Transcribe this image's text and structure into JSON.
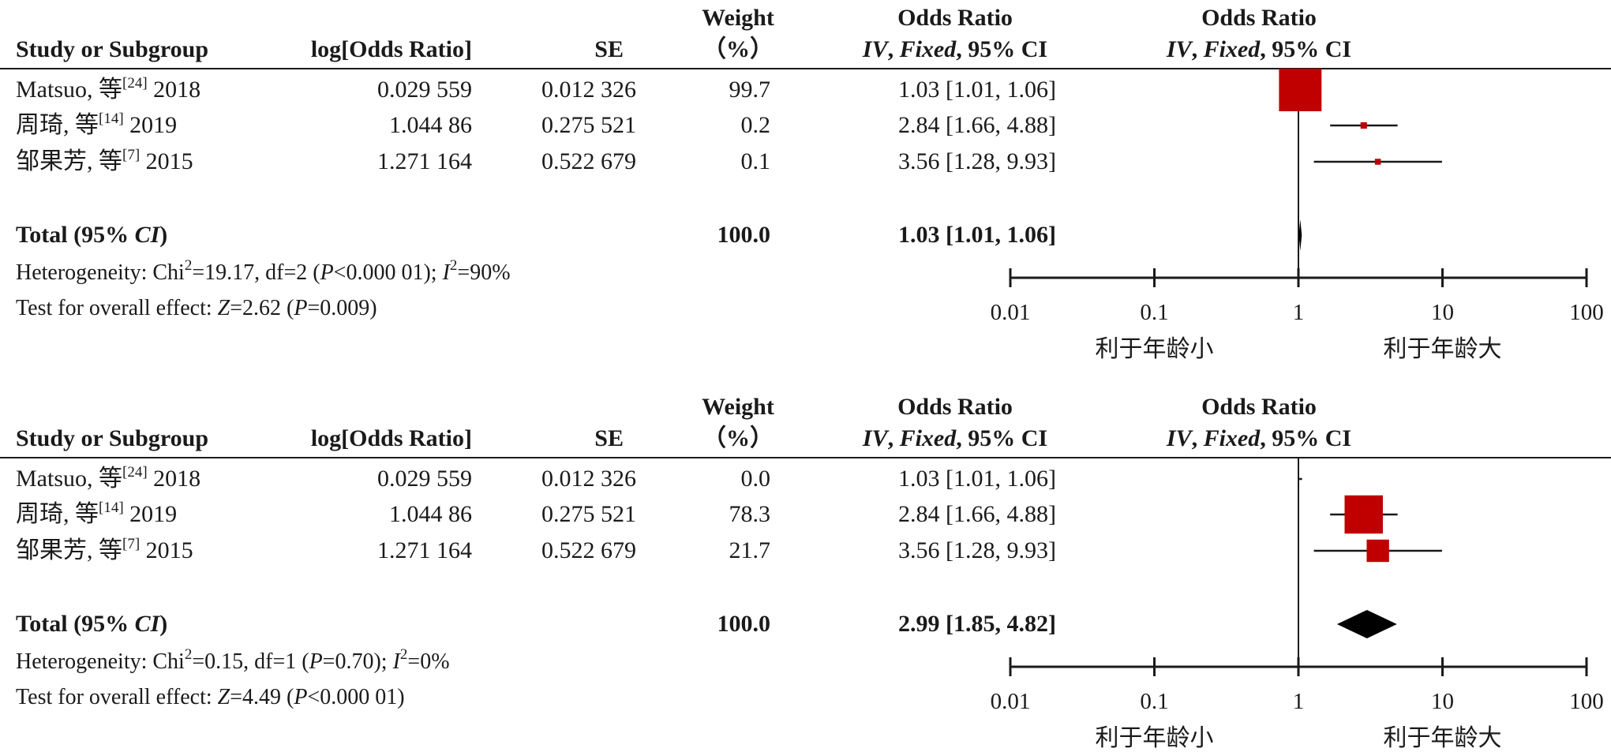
{
  "headers": {
    "study": "Study or Subgroup",
    "log_or": "log[Odds Ratio]",
    "se": "SE",
    "weight_line1": "Weight",
    "weight_line2": "（%）",
    "or_line1": "Odds Ratio",
    "or_method": "IV",
    "or_fixed": "Fixed",
    "or_ci": "95% CI",
    "plot_line1": "Odds Ratio",
    "plot_method": "IV",
    "plot_fixed": "Fixed",
    "plot_ci": "95% CI"
  },
  "chart_data": [
    {
      "type": "forest",
      "x_scale": "log",
      "xlim": [
        0.01,
        100
      ],
      "x_ticks": [
        "0.01",
        "0.1",
        "1",
        "10",
        "100"
      ],
      "x_tick_values": [
        0.01,
        0.1,
        1,
        10,
        100
      ],
      "favours_left": "利于年龄小",
      "favours_right": "利于年龄大",
      "marker_color": "#c00000",
      "studies": [
        {
          "name": "Matsuo, 等",
          "ref": "[24]",
          "year": "2018",
          "log_or": "0.029 559",
          "se": "0.012 326",
          "weight": "99.7",
          "weight_value": 99.7,
          "ci_text": "1.03 [1.01, 1.06]",
          "or": 1.03,
          "lower": 1.01,
          "upper": 1.06
        },
        {
          "name": "周琦, 等",
          "ref": "[14]",
          "year": "2019",
          "log_or": "1.044 86",
          "se": "0.275 521",
          "weight": "0.2",
          "weight_value": 0.2,
          "ci_text": "2.84 [1.66, 4.88]",
          "or": 2.84,
          "lower": 1.66,
          "upper": 4.88
        },
        {
          "name": "邹果芳, 等",
          "ref": "[7]",
          "year": "2015",
          "log_or": "1.271 164",
          "se": "0.522 679",
          "weight": "0.1",
          "weight_value": 0.1,
          "ci_text": "3.56 [1.28, 9.93]",
          "or": 3.56,
          "lower": 1.28,
          "upper": 9.93
        }
      ],
      "total": {
        "label": "Total (95% ",
        "label_ci": "CI",
        "label_end": ")",
        "weight": "100.0",
        "ci_text": "1.03 [1.01, 1.06]",
        "or": 1.03,
        "lower": 1.01,
        "upper": 1.06
      },
      "heterogeneity": {
        "prefix": "Heterogeneity: Chi",
        "chi2": "=19.17, df=2 (",
        "p": "P",
        "p_val": "<0.000 01); ",
        "i": "I",
        "i2": "=90%"
      },
      "overall": {
        "prefix": "Test for overall effect: ",
        "z": "Z",
        "z_val": "=2.62 (",
        "p": "P",
        "p_val": "=0.009)"
      }
    },
    {
      "type": "forest",
      "x_scale": "log",
      "xlim": [
        0.01,
        100
      ],
      "x_ticks": [
        "0.01",
        "0.1",
        "1",
        "10",
        "100"
      ],
      "x_tick_values": [
        0.01,
        0.1,
        1,
        10,
        100
      ],
      "favours_left": "利于年龄小",
      "favours_right": "利于年龄大",
      "marker_color": "#c00000",
      "studies": [
        {
          "name": "Matsuo, 等",
          "ref": "[24]",
          "year": "2018",
          "log_or": "0.029 559",
          "se": "0.012 326",
          "weight": "0.0",
          "weight_value": 0.0,
          "ci_text": "1.03 [1.01, 1.06]",
          "or": 1.03,
          "lower": 1.01,
          "upper": 1.06
        },
        {
          "name": "周琦, 等",
          "ref": "[14]",
          "year": "2019",
          "log_or": "1.044 86",
          "se": "0.275 521",
          "weight": "78.3",
          "weight_value": 78.3,
          "ci_text": "2.84 [1.66, 4.88]",
          "or": 2.84,
          "lower": 1.66,
          "upper": 4.88
        },
        {
          "name": "邹果芳, 等",
          "ref": "[7]",
          "year": "2015",
          "log_or": "1.271 164",
          "se": "0.522 679",
          "weight": "21.7",
          "weight_value": 21.7,
          "ci_text": "3.56 [1.28, 9.93]",
          "or": 3.56,
          "lower": 1.28,
          "upper": 9.93
        }
      ],
      "total": {
        "label": "Total (95% ",
        "label_ci": "CI",
        "label_end": ")",
        "weight": "100.0",
        "ci_text": "2.99 [1.85, 4.82]",
        "or": 2.99,
        "lower": 1.85,
        "upper": 4.82
      },
      "heterogeneity": {
        "prefix": "Heterogeneity: Chi",
        "chi2": "=0.15, df=1 (",
        "p": "P",
        "p_val": "=0.70); ",
        "i": "I",
        "i2": "=0%"
      },
      "overall": {
        "prefix": "Test for overall effect: ",
        "z": "Z",
        "z_val": "=4.49 (",
        "p": "P",
        "p_val": "<0.000 01)"
      }
    }
  ]
}
